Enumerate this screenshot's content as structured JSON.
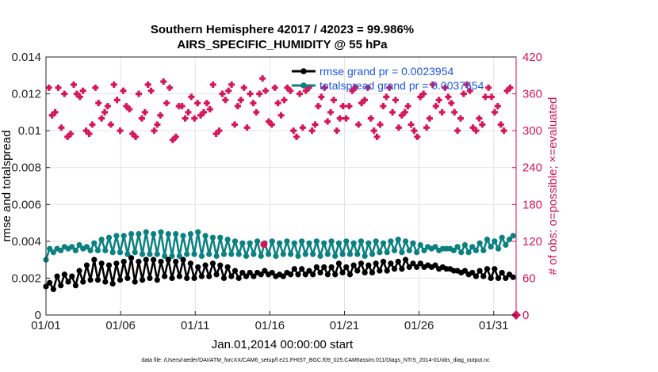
{
  "chart_data": {
    "type": "line",
    "title": "Southern Hemisphere 42017 / 42023 = 99.986%",
    "subtitle": "AIRS_SPECIFIC_HUMIDITY @ 55 hPa",
    "xlabel": "Jan.01,2014 00:00:00 start",
    "ylabel_left": "rmse and totalspread",
    "ylabel_right": "# of obs: o=possible; ×=evaluated",
    "footnote": "data file: /Users/raeder/DAI/ATM_forcXX/CAM6_setup/f.e21.FHIST_BGC.f09_025.CAM6assim.011/Diags_NTrS_2014-01/obs_diag_output.nc",
    "x_ticks": [
      "01/01",
      "01/06",
      "01/11",
      "01/16",
      "01/21",
      "01/26",
      "01/31"
    ],
    "y_left_ticks": [
      "0",
      "0.002",
      "0.004",
      "0.006",
      "0.008",
      "0.01",
      "0.012",
      "0.014"
    ],
    "y_right_ticks": [
      "0",
      "60",
      "120",
      "180",
      "240",
      "300",
      "360",
      "420"
    ],
    "ylim_left": [
      0,
      0.014
    ],
    "ylim_right": [
      0,
      420
    ],
    "xlim_days": [
      0,
      31.5
    ],
    "grid": true,
    "colors": {
      "rmse": "#000000",
      "spread": "#0b8181",
      "obs": "#d6145a",
      "legend_text": "#1a56e6",
      "grid": "#e3e3e3"
    },
    "legend": [
      {
        "name": "rmse grand pr = 0.0023954"
      },
      {
        "name": "totalspread grand pr = 0.0037654"
      }
    ],
    "series": [
      {
        "name": "rmse",
        "axis": "left",
        "values": [
          0.00155,
          0.00175,
          0.0014,
          0.0021,
          0.0016,
          0.0022,
          0.0018,
          0.0021,
          0.0016,
          0.0024,
          0.0018,
          0.0027,
          0.0019,
          0.003,
          0.0019,
          0.0028,
          0.0018,
          0.0027,
          0.0017,
          0.0028,
          0.0019,
          0.0029,
          0.002,
          0.0031,
          0.0018,
          0.0029,
          0.0019,
          0.003,
          0.002,
          0.003,
          0.0019,
          0.0029,
          0.0021,
          0.003,
          0.002,
          0.0029,
          0.0021,
          0.003,
          0.002,
          0.0028,
          0.002,
          0.0026,
          0.0021,
          0.0027,
          0.0021,
          0.0028,
          0.0022,
          0.0027,
          0.002,
          0.0026,
          0.0021,
          0.0024,
          0.002,
          0.0023,
          0.0021,
          0.0023,
          0.0021,
          0.0023,
          0.0022,
          0.0024,
          0.0022,
          0.0023,
          0.0021,
          0.0022,
          0.0021,
          0.0023,
          0.0022,
          0.0025,
          0.0022,
          0.0025,
          0.0022,
          0.0024,
          0.0022,
          0.0026,
          0.0023,
          0.0026,
          0.0022,
          0.0026,
          0.0022,
          0.0028,
          0.0023,
          0.0026,
          0.0022,
          0.0027,
          0.0024,
          0.0028,
          0.0023,
          0.0027,
          0.0023,
          0.0028,
          0.0024,
          0.0029,
          0.0024,
          0.0028,
          0.0025,
          0.0029,
          0.0025,
          0.003,
          0.0026,
          0.0028,
          0.0026,
          0.0028,
          0.0026,
          0.0027,
          0.0026,
          0.0027,
          0.0025,
          0.0026,
          0.0025,
          0.0025,
          0.0024,
          0.0024,
          0.0023,
          0.0024,
          0.0022,
          0.0023,
          0.0021,
          0.0024,
          0.0021,
          0.0025,
          0.002,
          0.0025,
          0.002,
          0.0023,
          0.002,
          0.0022,
          0.00205
        ]
      },
      {
        "name": "totalspread",
        "axis": "left",
        "values": [
          0.003,
          0.0036,
          0.0034,
          0.0036,
          0.0035,
          0.0037,
          0.0036,
          0.0037,
          0.0035,
          0.0038,
          0.0036,
          0.0037,
          0.0035,
          0.0039,
          0.0035,
          0.0041,
          0.0035,
          0.0042,
          0.0034,
          0.0043,
          0.0034,
          0.0043,
          0.0033,
          0.0044,
          0.0034,
          0.0044,
          0.0033,
          0.0045,
          0.0033,
          0.0044,
          0.0033,
          0.0045,
          0.0032,
          0.0044,
          0.0032,
          0.0044,
          0.0032,
          0.0043,
          0.0033,
          0.0044,
          0.0033,
          0.0045,
          0.0032,
          0.0043,
          0.0033,
          0.0042,
          0.0032,
          0.0042,
          0.0033,
          0.0041,
          0.0033,
          0.004,
          0.0033,
          0.0039,
          0.0032,
          0.0039,
          0.0033,
          0.004,
          0.0032,
          0.0039,
          0.0033,
          0.004,
          0.0032,
          0.0039,
          0.0033,
          0.004,
          0.0033,
          0.0039,
          0.0032,
          0.004,
          0.0033,
          0.0039,
          0.0033,
          0.004,
          0.0032,
          0.0039,
          0.0033,
          0.004,
          0.0032,
          0.0039,
          0.0033,
          0.004,
          0.0033,
          0.0039,
          0.0033,
          0.004,
          0.0032,
          0.0039,
          0.0033,
          0.004,
          0.0034,
          0.0039,
          0.0034,
          0.004,
          0.0035,
          0.0041,
          0.0034,
          0.004,
          0.0035,
          0.0039,
          0.0034,
          0.0038,
          0.0035,
          0.0037,
          0.0036,
          0.0037,
          0.0035,
          0.0036,
          0.0036,
          0.0036,
          0.0035,
          0.0037,
          0.0034,
          0.0038,
          0.0034,
          0.0037,
          0.0035,
          0.0039,
          0.0035,
          0.0041,
          0.0037,
          0.004,
          0.0036,
          0.0042,
          0.0038,
          0.0041,
          0.0043
        ]
      },
      {
        "name": "obs evaluated",
        "axis": "right",
        "values": [
          370,
          325,
          330,
          370,
          305,
          360,
          290,
          295,
          375,
          360,
          355,
          365,
          300,
          295,
          310,
          370,
          345,
          320,
          330,
          340,
          310,
          375,
          350,
          300,
          365,
          340,
          335,
          295,
          290,
          360,
          320,
          330,
          375,
          365,
          300,
          310,
          325,
          380,
          345,
          370,
          285,
          290,
          340,
          340,
          320,
          330,
          355,
          320,
          345,
          325,
          330,
          345,
          335,
          375,
          295,
          300,
          360,
          350,
          365,
          375,
          310,
          340,
          350,
          370,
          305,
          360,
          345,
          330,
          360,
          385,
          365,
          315,
          310,
          370,
          345,
          325,
          350,
          370,
          365,
          300,
          290,
          360,
          305,
          365,
          370,
          300,
          310,
          340,
          355,
          370,
          315,
          330,
          350,
          300,
          320,
          340,
          320,
          340,
          365,
          370,
          310,
          345,
          350,
          370,
          320,
          300,
          290,
          310,
          340,
          355,
          370,
          330,
          350,
          305,
          325,
          330,
          340,
          310,
          300,
          290,
          355,
          360,
          305,
          320,
          375,
          340,
          350,
          330,
          370,
          355,
          345,
          330,
          300,
          320,
          360,
          375,
          365,
          305,
          300,
          320,
          310,
          355,
          370,
          355,
          330,
          340,
          310,
          300,
          365,
          370
        ]
      }
    ],
    "annotations": [
      {
        "x_day": 14.6,
        "y_right": 115,
        "label": "possible/evaluated marker"
      }
    ]
  }
}
